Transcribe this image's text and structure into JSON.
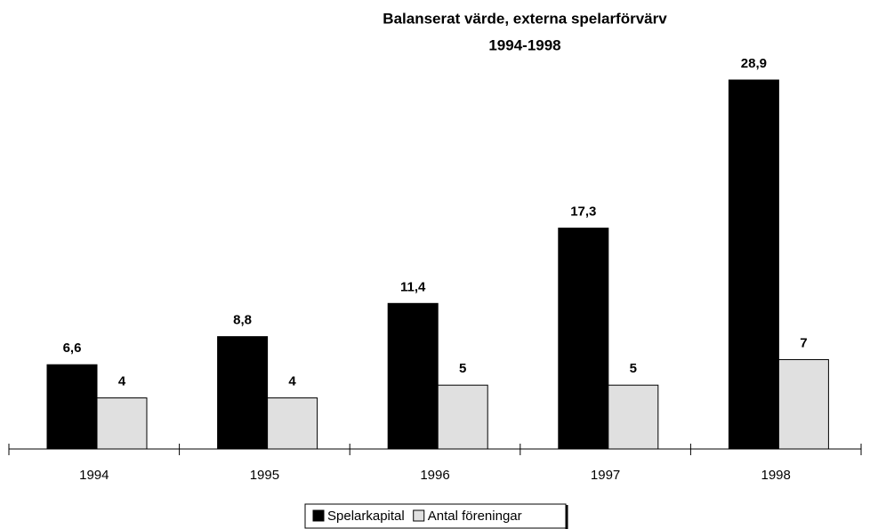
{
  "chart_data": {
    "type": "bar",
    "title": [
      "Balanserat värde, externa spelarförvärv",
      "1994-1998"
    ],
    "categories": [
      "1994",
      "1995",
      "1996",
      "1997",
      "1998"
    ],
    "series": [
      {
        "name": "Spelarkapital",
        "color": "#000000",
        "values": [
          6.6,
          8.8,
          11.4,
          17.3,
          28.9
        ],
        "value_labels": [
          "6,6",
          "8,8",
          "11,4",
          "17,3",
          "28,9"
        ]
      },
      {
        "name": "Antal föreningar",
        "color": "#e0e0e0",
        "values": [
          4,
          4,
          5,
          5,
          7
        ]
      }
    ],
    "legend": "bottom"
  }
}
